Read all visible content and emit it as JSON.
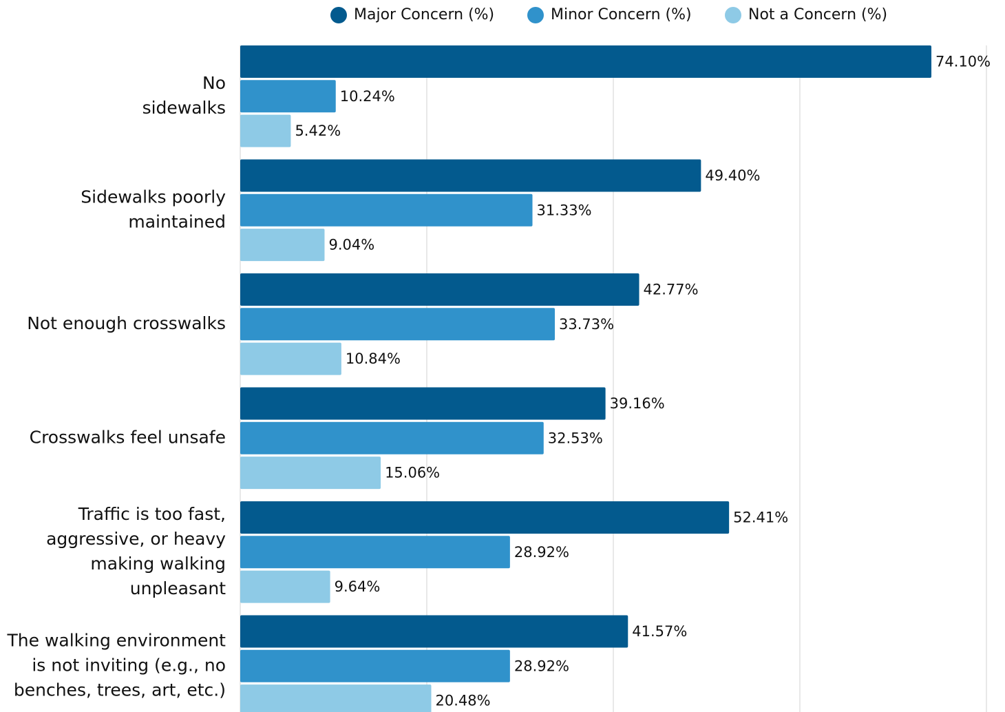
{
  "chart_data": {
    "type": "hbar",
    "categories": [
      "No\nsidewalks",
      "Sidewalks poorly\nmaintained",
      "Not enough crosswalks",
      "Crosswalks feel unsafe",
      "Traffic is too fast,\naggressive, or heavy\nmaking walking\nunpleasant",
      "The walking environment\nis not inviting (e.g., no\nbenches, trees, art, etc.)"
    ],
    "series": [
      {
        "name": "Major Concern (%)",
        "color": "#035a8e",
        "values": [
          74.1,
          49.4,
          42.77,
          39.16,
          52.41,
          41.57
        ],
        "value_labels": [
          "74.10%",
          "49.40%",
          "42.77%",
          "39.16%",
          "52.41%",
          "41.57%"
        ]
      },
      {
        "name": "Minor Concern (%)",
        "color": "#3092cb",
        "values": [
          10.24,
          31.33,
          33.73,
          32.53,
          28.92,
          28.92
        ],
        "value_labels": [
          "10.24%",
          "31.33%",
          "33.73%",
          "32.53%",
          "28.92%",
          "28.92%"
        ]
      },
      {
        "name": "Not a Concern (%)",
        "color": "#8ecae6",
        "values": [
          5.42,
          9.04,
          10.84,
          15.06,
          9.64,
          20.48
        ],
        "value_labels": [
          "5.42%",
          "9.04%",
          "10.84%",
          "15.06%",
          "9.64%",
          "20.48%"
        ]
      }
    ],
    "xlim": [
      0,
      80
    ],
    "xticks": [
      0,
      20,
      40,
      60,
      80
    ],
    "xtick_labels": false,
    "grid": true,
    "legend": "top"
  }
}
